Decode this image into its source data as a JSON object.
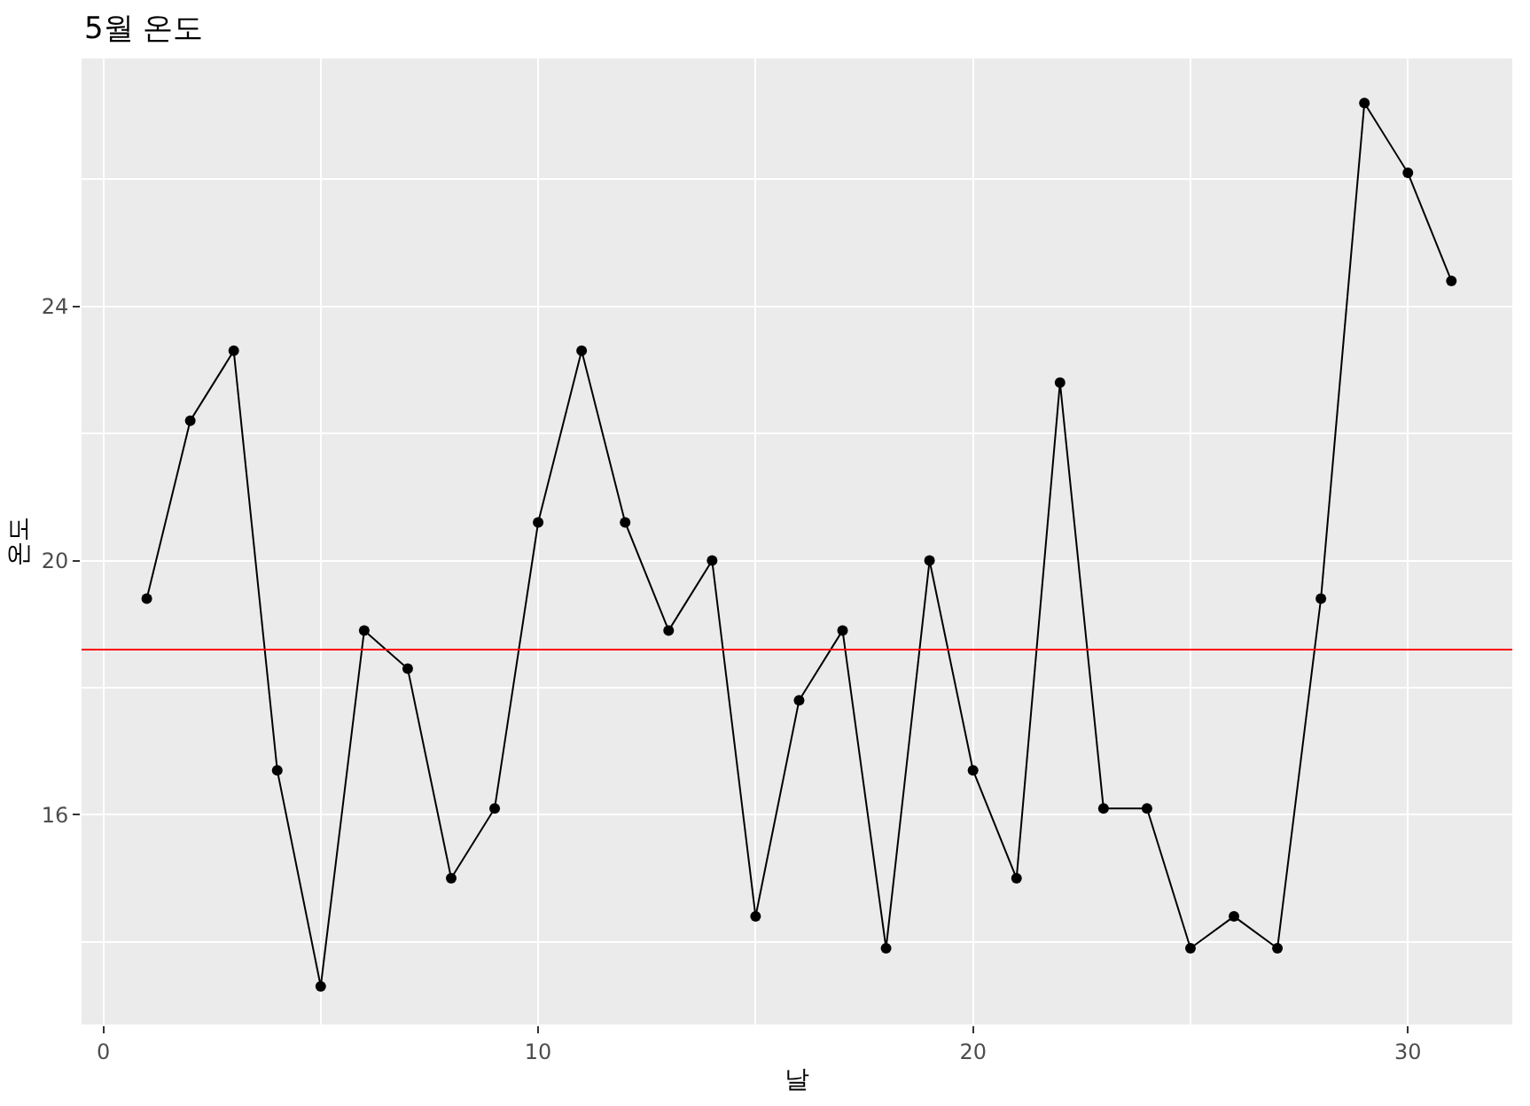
{
  "chart_data": {
    "type": "line",
    "title": "5월 온도",
    "xlabel": "날",
    "ylabel": "온도",
    "x": [
      1,
      2,
      3,
      4,
      5,
      6,
      7,
      8,
      9,
      10,
      11,
      12,
      13,
      14,
      15,
      16,
      17,
      18,
      19,
      20,
      21,
      22,
      23,
      24,
      25,
      26,
      27,
      28,
      29,
      30,
      31
    ],
    "series": [
      {
        "color": "#000000",
        "values": [
          19.4,
          22.2,
          23.3,
          16.7,
          13.3,
          18.9,
          18.3,
          15.0,
          16.1,
          20.6,
          23.3,
          20.6,
          18.9,
          20.0,
          14.4,
          17.8,
          18.9,
          13.9,
          20.0,
          16.7,
          15.0,
          22.8,
          16.1,
          16.1,
          13.9,
          14.4,
          13.9,
          19.4,
          27.2,
          26.1,
          24.4
        ]
      }
    ],
    "xlim": [
      -0.5,
      32.4
    ],
    "ylim": [
      12.7,
      27.9
    ],
    "xticks": [
      0,
      {
        "value": 5,
        "label": null
      },
      10,
      {
        "value": 15,
        "label": null
      },
      20,
      {
        "value": 25,
        "label": null
      },
      30
    ],
    "yticks": [
      {
        "value": 14,
        "label": null
      },
      16,
      {
        "value": 18,
        "label": null
      },
      20,
      {
        "value": 22,
        "label": null
      },
      24,
      {
        "value": 26,
        "label": null
      }
    ],
    "ref_lines": [
      {
        "axis": "y",
        "value": 18.6,
        "color": "#ff0000"
      }
    ],
    "grid": true,
    "marker": "circle",
    "line_style": "solid"
  }
}
